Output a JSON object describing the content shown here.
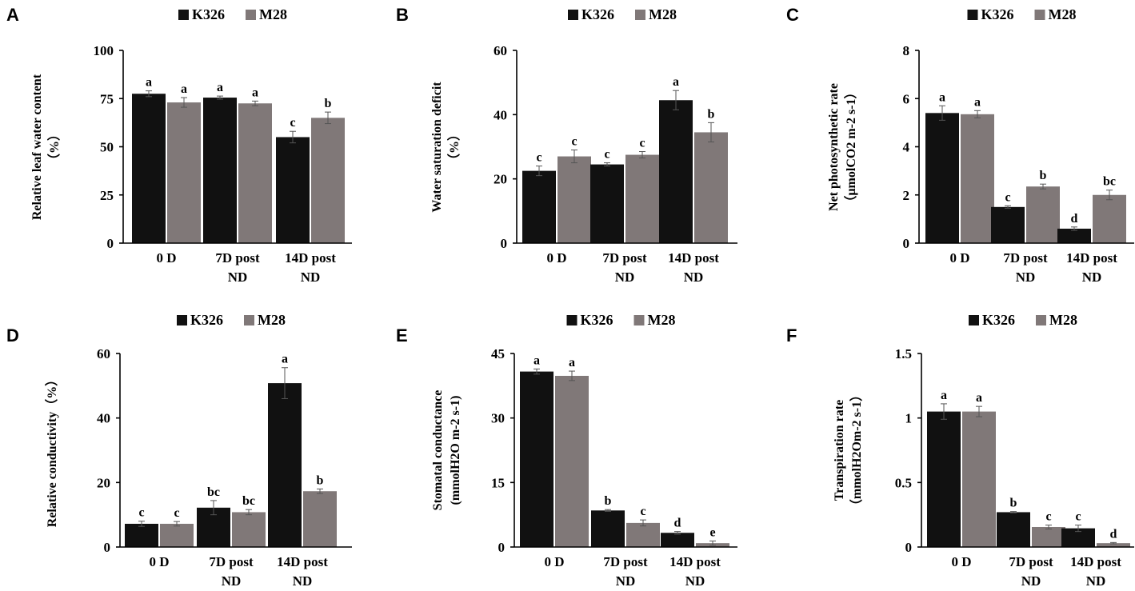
{
  "colors": {
    "K326": "#111111",
    "M28": "#807878"
  },
  "chart_data": [
    {
      "panel": "A",
      "type": "bar",
      "legend": [
        "K326",
        "M28"
      ],
      "categories": [
        [
          "0 D"
        ],
        [
          "7D post",
          "ND"
        ],
        [
          "14D post",
          "ND"
        ]
      ],
      "ylabel_lines": [
        "Relative leaf water content",
        "（%）"
      ],
      "ylim": [
        0,
        100
      ],
      "yticks": [
        0,
        25,
        50,
        75,
        100
      ],
      "ytick_labels": [
        "0",
        "25",
        "50",
        "75",
        "100"
      ],
      "series": [
        {
          "name": "K326",
          "values": [
            77.5,
            75.5,
            55
          ],
          "errors": [
            1.5,
            0.8,
            3
          ],
          "letters": [
            "a",
            "a",
            "c"
          ]
        },
        {
          "name": "M28",
          "values": [
            73,
            72.5,
            65
          ],
          "errors": [
            2.5,
            1.2,
            3
          ],
          "letters": [
            "a",
            "a",
            "b"
          ]
        }
      ]
    },
    {
      "panel": "B",
      "type": "bar",
      "legend": [
        "K326",
        "M28"
      ],
      "categories": [
        [
          "0 D"
        ],
        [
          "7D post",
          "ND"
        ],
        [
          "14D post",
          "ND"
        ]
      ],
      "ylabel_lines": [
        "Water saturation  deficit",
        "（%）"
      ],
      "ylim": [
        0,
        60
      ],
      "yticks": [
        0,
        20,
        40,
        60
      ],
      "ytick_labels": [
        "0",
        "20",
        "40",
        "60"
      ],
      "series": [
        {
          "name": "K326",
          "values": [
            22.5,
            24.5,
            44.5
          ],
          "errors": [
            1.5,
            0.5,
            3
          ],
          "letters": [
            "c",
            "c",
            "a"
          ]
        },
        {
          "name": "M28",
          "values": [
            27,
            27.5,
            34.5
          ],
          "errors": [
            2,
            1,
            3
          ],
          "letters": [
            "c",
            "c",
            "b"
          ]
        }
      ]
    },
    {
      "panel": "C",
      "type": "bar",
      "legend": [
        "K326",
        "M28"
      ],
      "categories": [
        [
          "0 D"
        ],
        [
          "7D post",
          "ND"
        ],
        [
          "14D post",
          "ND"
        ]
      ],
      "ylabel_lines": [
        "Net photosynthetic rate",
        "（μmolCO2  m-2  s-1）"
      ],
      "ylim": [
        0,
        8
      ],
      "yticks": [
        0,
        2,
        4,
        6,
        8
      ],
      "ytick_labels": [
        "0",
        "2",
        "4",
        "6",
        "8"
      ],
      "series": [
        {
          "name": "K326",
          "values": [
            5.4,
            1.5,
            0.6
          ],
          "errors": [
            0.3,
            0.05,
            0.07
          ],
          "letters": [
            "a",
            "c",
            "d"
          ]
        },
        {
          "name": "M28",
          "values": [
            5.35,
            2.35,
            2.0
          ],
          "errors": [
            0.15,
            0.1,
            0.2
          ],
          "letters": [
            "a",
            "b",
            "bc"
          ]
        }
      ]
    },
    {
      "panel": "D",
      "type": "bar",
      "legend": [
        "K326",
        "M28"
      ],
      "categories": [
        [
          "0 D"
        ],
        [
          "7D post",
          "ND"
        ],
        [
          "14D post",
          "ND"
        ]
      ],
      "ylabel_lines": [
        "Relative conductivity（%）"
      ],
      "ylim": [
        0,
        60
      ],
      "yticks": [
        0,
        20,
        40,
        60
      ],
      "ytick_labels": [
        "0",
        "20",
        "40",
        "60"
      ],
      "series": [
        {
          "name": "K326",
          "values": [
            7.2,
            12.2,
            50.8
          ],
          "errors": [
            0.8,
            2.2,
            4.8
          ],
          "letters": [
            "c",
            "bc",
            "a"
          ]
        },
        {
          "name": "M28",
          "values": [
            7.2,
            10.8,
            17.3
          ],
          "errors": [
            0.7,
            0.8,
            0.7
          ],
          "letters": [
            "c",
            "bc",
            "b"
          ]
        }
      ]
    },
    {
      "panel": "E",
      "type": "bar",
      "legend": [
        "K326",
        "M28"
      ],
      "categories": [
        [
          "0 D"
        ],
        [
          "7D post",
          "ND"
        ],
        [
          "14D post",
          "ND"
        ]
      ],
      "ylabel_lines": [
        "Stomatal conductance",
        "(mmolH2O  m-2  s-1)"
      ],
      "ylim": [
        0,
        45
      ],
      "yticks": [
        0,
        15,
        30,
        45
      ],
      "ytick_labels": [
        "0",
        "15",
        "30",
        "45"
      ],
      "series": [
        {
          "name": "K326",
          "values": [
            40.8,
            8.5,
            3.3
          ],
          "errors": [
            0.6,
            0.2,
            0.3
          ],
          "letters": [
            "a",
            "b",
            "d"
          ]
        },
        {
          "name": "M28",
          "values": [
            39.8,
            5.6,
            0.9
          ],
          "errors": [
            1.1,
            0.7,
            0.5
          ],
          "letters": [
            "a",
            "c",
            "e"
          ]
        }
      ]
    },
    {
      "panel": "F",
      "type": "bar",
      "legend": [
        "K326",
        "M28"
      ],
      "categories": [
        [
          "0 D"
        ],
        [
          "7D post",
          "ND"
        ],
        [
          "14D post",
          "ND"
        ]
      ],
      "ylabel_lines": [
        "Transpiration  rate",
        "（mmolH2Om-2  s-1）"
      ],
      "ylim": [
        0,
        1.5
      ],
      "yticks": [
        0,
        0.5,
        1,
        1.5
      ],
      "ytick_labels": [
        "0",
        "0.5",
        "1",
        "1.5"
      ],
      "series": [
        {
          "name": "K326",
          "values": [
            1.05,
            0.27,
            0.145
          ],
          "errors": [
            0.06,
            0.005,
            0.025
          ],
          "letters": [
            "a",
            "b",
            "c"
          ]
        },
        {
          "name": "M28",
          "values": [
            1.05,
            0.155,
            0.03
          ],
          "errors": [
            0.04,
            0.015,
            0.005
          ],
          "letters": [
            "a",
            "c",
            "d"
          ]
        }
      ]
    }
  ]
}
